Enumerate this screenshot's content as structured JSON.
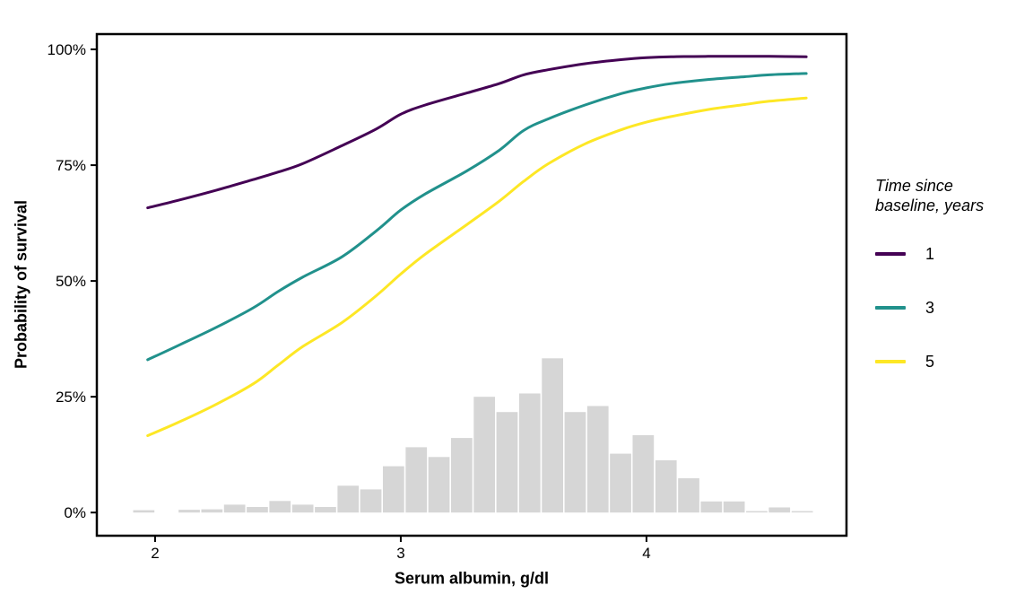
{
  "chart_data": {
    "type": "line",
    "title": "",
    "xlabel": "Serum albumin, g/dl",
    "ylabel": "Probability of survival",
    "xlim": [
      1.763,
      4.814
    ],
    "ylim_pct": [
      -5,
      103.3
    ],
    "grid": "off",
    "legend_position": "right",
    "x_ticks": [
      {
        "v": 2,
        "label": "2"
      },
      {
        "v": 3,
        "label": "3"
      },
      {
        "v": 4,
        "label": "4"
      }
    ],
    "y_ticks": [
      {
        "v": 0,
        "label": "0%"
      },
      {
        "v": 25,
        "label": "25%"
      },
      {
        "v": 50,
        "label": "50%"
      },
      {
        "v": 75,
        "label": "75%"
      },
      {
        "v": 100,
        "label": "100%"
      }
    ],
    "series": [
      {
        "name": "1",
        "color": "#440154",
        "points": [
          [
            1.97,
            65.8
          ],
          [
            2.1,
            67.5
          ],
          [
            2.25,
            69.6
          ],
          [
            2.4,
            71.9
          ],
          [
            2.5,
            73.5
          ],
          [
            2.6,
            75.3
          ],
          [
            2.76,
            79.2
          ],
          [
            2.9,
            82.8
          ],
          [
            3.0,
            86.0
          ],
          [
            3.1,
            88.0
          ],
          [
            3.27,
            90.6
          ],
          [
            3.4,
            92.6
          ],
          [
            3.5,
            94.5
          ],
          [
            3.6,
            95.6
          ],
          [
            3.75,
            96.9
          ],
          [
            3.9,
            97.8
          ],
          [
            4.0,
            98.2
          ],
          [
            4.1,
            98.4
          ],
          [
            4.25,
            98.5
          ],
          [
            4.4,
            98.5
          ],
          [
            4.5,
            98.5
          ],
          [
            4.65,
            98.4
          ]
        ]
      },
      {
        "name": "3",
        "color": "#21918c",
        "points": [
          [
            1.97,
            33.0
          ],
          [
            2.1,
            36.2
          ],
          [
            2.25,
            40.0
          ],
          [
            2.4,
            44.2
          ],
          [
            2.5,
            47.7
          ],
          [
            2.6,
            50.8
          ],
          [
            2.76,
            55.2
          ],
          [
            2.9,
            60.8
          ],
          [
            3.0,
            65.3
          ],
          [
            3.1,
            68.8
          ],
          [
            3.27,
            73.8
          ],
          [
            3.4,
            78.2
          ],
          [
            3.5,
            82.5
          ],
          [
            3.6,
            85.0
          ],
          [
            3.75,
            88.0
          ],
          [
            3.9,
            90.5
          ],
          [
            4.0,
            91.7
          ],
          [
            4.1,
            92.6
          ],
          [
            4.25,
            93.5
          ],
          [
            4.4,
            94.1
          ],
          [
            4.5,
            94.5
          ],
          [
            4.65,
            94.8
          ]
        ]
      },
      {
        "name": "5",
        "color": "#fde725",
        "points": [
          [
            1.97,
            16.6
          ],
          [
            2.1,
            19.6
          ],
          [
            2.25,
            23.4
          ],
          [
            2.4,
            27.8
          ],
          [
            2.5,
            31.8
          ],
          [
            2.6,
            35.8
          ],
          [
            2.76,
            41.0
          ],
          [
            2.9,
            46.8
          ],
          [
            3.0,
            51.5
          ],
          [
            3.1,
            55.8
          ],
          [
            3.27,
            62.2
          ],
          [
            3.4,
            67.2
          ],
          [
            3.5,
            71.5
          ],
          [
            3.6,
            75.3
          ],
          [
            3.75,
            79.6
          ],
          [
            3.9,
            82.7
          ],
          [
            4.0,
            84.3
          ],
          [
            4.1,
            85.5
          ],
          [
            4.25,
            87.0
          ],
          [
            4.4,
            88.1
          ],
          [
            4.5,
            88.8
          ],
          [
            4.65,
            89.5
          ]
        ]
      }
    ],
    "histogram": {
      "color": "#d6d6d6",
      "bins_start": 1.908,
      "bin_width": 0.0924,
      "values_pct": [
        0.5,
        0,
        0.6,
        0.7,
        1.7,
        1.2,
        2.5,
        1.7,
        1.2,
        5.8,
        5.0,
        10.0,
        14.1,
        12.0,
        16.1,
        25.0,
        21.7,
        25.7,
        33.3,
        21.7,
        23.0,
        12.7,
        16.7,
        11.3,
        7.4,
        2.4,
        2.4,
        0.3,
        1.1,
        0.3
      ]
    }
  },
  "legend": {
    "title_line1": "Time since",
    "title_line2": "baseline, years",
    "entries": [
      {
        "label": "1",
        "color": "#440154"
      },
      {
        "label": "3",
        "color": "#21918c"
      },
      {
        "label": "5",
        "color": "#fde725"
      }
    ]
  },
  "style": {
    "axis_color": "#000000",
    "tick_label_size": 17
  }
}
